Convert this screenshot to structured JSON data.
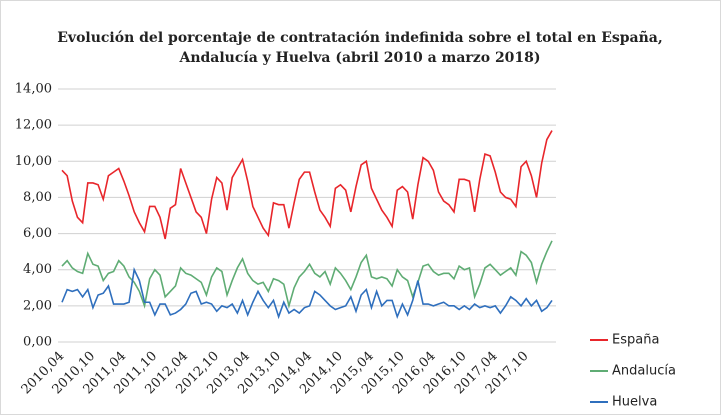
{
  "chart_data": {
    "type": "line",
    "title": [
      "Evolución del porcentaje de contratación indefinida sobre el total en España,",
      "Andalucía y Huelva (abril 2010 a marzo 2018)"
    ],
    "categories": [
      "2010,04",
      null,
      null,
      null,
      null,
      null,
      "2010,10",
      null,
      null,
      null,
      null,
      null,
      "2011,04",
      null,
      null,
      null,
      null,
      null,
      "2011,10",
      null,
      null,
      null,
      null,
      null,
      "2012,04",
      null,
      null,
      null,
      null,
      null,
      "2012,10",
      null,
      null,
      null,
      null,
      null,
      "2013,04",
      null,
      null,
      null,
      null,
      null,
      "2013,10",
      null,
      null,
      null,
      null,
      null,
      "2014,04",
      null,
      null,
      null,
      null,
      null,
      "2014,10",
      null,
      null,
      null,
      null,
      null,
      "2015,04",
      null,
      null,
      null,
      null,
      null,
      "2015,10",
      null,
      null,
      null,
      null,
      null,
      "2016,04",
      null,
      null,
      null,
      null,
      null,
      "2016,10",
      null,
      null,
      null,
      null,
      null,
      "2017,04",
      null,
      null,
      null,
      null,
      null,
      "2017,10",
      null,
      null,
      null,
      null,
      null
    ],
    "series": [
      {
        "name": "España",
        "color": "#e8262b",
        "values": [
          9.5,
          9.2,
          7.8,
          6.9,
          6.6,
          8.8,
          8.8,
          8.7,
          7.9,
          9.2,
          9.4,
          9.6,
          8.9,
          8.1,
          7.2,
          6.6,
          6.1,
          7.5,
          7.5,
          6.9,
          5.7,
          7.4,
          7.6,
          9.6,
          8.8,
          8.0,
          7.2,
          6.9,
          6.0,
          7.9,
          9.1,
          8.8,
          7.3,
          9.1,
          9.6,
          10.1,
          8.9,
          7.5,
          6.9,
          6.3,
          5.9,
          7.7,
          7.6,
          7.6,
          6.3,
          7.7,
          9.0,
          9.4,
          9.4,
          8.3,
          7.3,
          6.9,
          6.4,
          8.5,
          8.7,
          8.4,
          7.2,
          8.6,
          9.8,
          10.0,
          8.5,
          7.9,
          7.3,
          6.9,
          6.4,
          8.4,
          8.6,
          8.3,
          6.8,
          8.7,
          10.2,
          10.0,
          9.5,
          8.3,
          7.8,
          7.6,
          7.2,
          9.0,
          9.0,
          8.9,
          7.2,
          9.0,
          10.4,
          10.3,
          9.4,
          8.3,
          8.0,
          7.9,
          7.5,
          9.7,
          10.0,
          9.2,
          8.0,
          9.9,
          11.2,
          11.7
        ]
      },
      {
        "name": "Andalucía",
        "color": "#5fac74",
        "values": [
          4.2,
          4.5,
          4.1,
          3.9,
          3.8,
          4.9,
          4.3,
          4.2,
          3.4,
          3.8,
          3.9,
          4.5,
          4.2,
          3.6,
          3.3,
          2.8,
          2.0,
          3.5,
          4.0,
          3.7,
          2.5,
          2.8,
          3.1,
          4.1,
          3.8,
          3.7,
          3.5,
          3.3,
          2.6,
          3.6,
          4.1,
          3.9,
          2.6,
          3.4,
          4.1,
          4.6,
          3.8,
          3.4,
          3.2,
          3.3,
          2.8,
          3.5,
          3.4,
          3.2,
          2.0,
          3.0,
          3.6,
          3.9,
          4.3,
          3.8,
          3.6,
          3.9,
          3.2,
          4.1,
          3.8,
          3.4,
          2.9,
          3.6,
          4.4,
          4.8,
          3.6,
          3.5,
          3.6,
          3.5,
          3.1,
          4.0,
          3.6,
          3.4,
          2.5,
          3.3,
          4.2,
          4.3,
          3.9,
          3.7,
          3.8,
          3.8,
          3.5,
          4.2,
          4.0,
          4.1,
          2.5,
          3.2,
          4.1,
          4.3,
          4.0,
          3.7,
          3.9,
          4.1,
          3.7,
          5.0,
          4.8,
          4.4,
          3.3,
          4.3,
          5.0,
          5.6
        ]
      },
      {
        "name": "Huelva",
        "color": "#2f6fbd",
        "values": [
          2.2,
          2.9,
          2.8,
          2.9,
          2.5,
          2.9,
          1.9,
          2.6,
          2.7,
          3.1,
          2.1,
          2.1,
          2.1,
          2.2,
          4.0,
          3.4,
          2.2,
          2.2,
          1.5,
          2.1,
          2.1,
          1.5,
          1.6,
          1.8,
          2.1,
          2.7,
          2.8,
          2.1,
          2.2,
          2.1,
          1.7,
          2.0,
          1.9,
          2.1,
          1.6,
          2.3,
          1.5,
          2.2,
          2.8,
          2.3,
          1.9,
          2.3,
          1.4,
          2.2,
          1.6,
          1.8,
          1.6,
          1.9,
          2.0,
          2.8,
          2.6,
          2.3,
          2.0,
          1.8,
          1.9,
          2.0,
          2.5,
          1.7,
          2.6,
          2.9,
          1.9,
          2.8,
          2.0,
          2.3,
          2.3,
          1.4,
          2.1,
          1.5,
          2.3,
          3.4,
          2.1,
          2.1,
          2.0,
          2.1,
          2.2,
          2.0,
          2.0,
          1.8,
          2.0,
          1.8,
          2.1,
          1.9,
          2.0,
          1.9,
          2.0,
          1.6,
          2.0,
          2.5,
          2.3,
          2.0,
          2.4,
          2.0,
          2.3,
          1.7,
          1.9,
          2.3
        ]
      }
    ],
    "ylim": [
      0,
      14
    ],
    "yticks": [
      {
        "value": 0,
        "label": "0,00"
      },
      {
        "value": 2,
        "label": "2,00"
      },
      {
        "value": 4,
        "label": "4,00"
      },
      {
        "value": 6,
        "label": "6,00"
      },
      {
        "value": 8,
        "label": "8,00"
      },
      {
        "value": 10,
        "label": "10,00"
      },
      {
        "value": 12,
        "label": "12,00"
      },
      {
        "value": 14,
        "label": "14,00"
      }
    ],
    "grid": true,
    "legend": "right"
  }
}
